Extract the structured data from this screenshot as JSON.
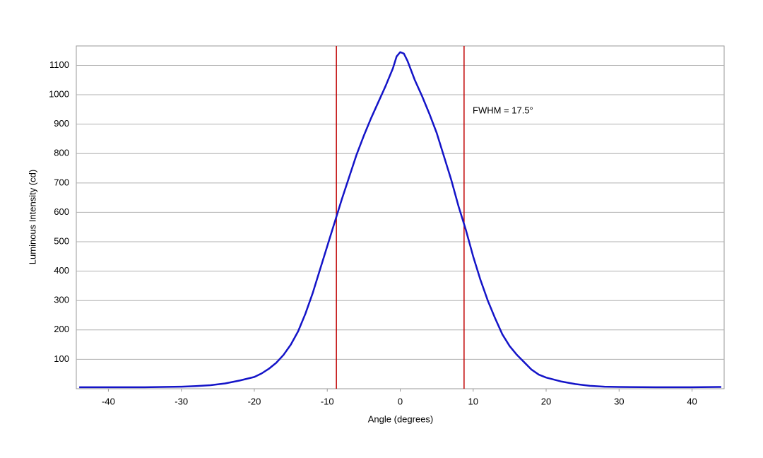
{
  "chart_data": {
    "type": "line",
    "xlabel": "Angle (degrees)",
    "ylabel": "Luminous Intensity (cd)",
    "annotation": "FWHM = 17.5°",
    "x": [
      -44,
      -40,
      -35,
      -30,
      -28,
      -26,
      -24,
      -22,
      -20,
      -19,
      -18,
      -17,
      -16,
      -15,
      -14,
      -13,
      -12,
      -11,
      -10,
      -9,
      -8,
      -7,
      -6,
      -5,
      -4,
      -3,
      -2,
      -1,
      -0.5,
      0,
      0.5,
      1,
      2,
      3,
      4,
      5,
      6,
      7,
      8,
      9,
      10,
      11,
      12,
      13,
      14,
      15,
      16,
      17,
      18,
      19,
      20,
      22,
      24,
      26,
      28,
      30,
      35,
      40,
      44
    ],
    "series": [
      {
        "color": "#1414c8",
        "values": [
          5,
          5,
          5,
          7,
          9,
          12,
          18,
          28,
          40,
          52,
          68,
          88,
          115,
          150,
          195,
          255,
          325,
          405,
          485,
          565,
          645,
          720,
          795,
          860,
          920,
          975,
          1030,
          1090,
          1130,
          1145,
          1140,
          1115,
          1050,
          995,
          935,
          870,
          790,
          710,
          620,
          540,
          450,
          370,
          300,
          240,
          185,
          145,
          115,
          90,
          65,
          48,
          38,
          25,
          16,
          10,
          7,
          6,
          5,
          5,
          6
        ]
      }
    ],
    "vlines": [
      -8.75,
      8.75
    ],
    "vline_color": "#c00000",
    "xlim": [
      -44.4,
      44.4
    ],
    "xticks": [
      -40,
      -30,
      -20,
      -10,
      0,
      10,
      20,
      30,
      40
    ],
    "ylim": [
      0,
      1166
    ],
    "yticks": [
      100,
      200,
      300,
      400,
      500,
      600,
      700,
      800,
      900,
      1000,
      1100
    ],
    "grid": true
  }
}
